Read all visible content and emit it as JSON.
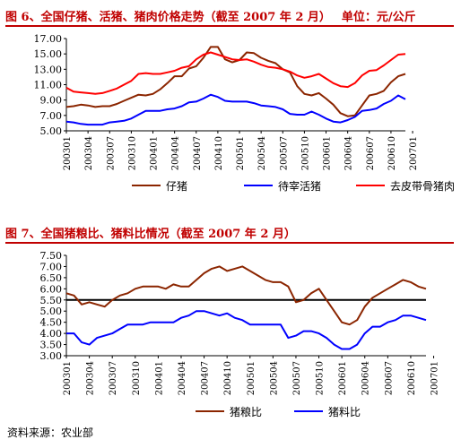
{
  "source_note": "资料来源：农业部",
  "chart_data": [
    {
      "type": "line",
      "title": "图 6、全国仔猪、活猪、猪肉价格走势（截至 2007 年 2 月）",
      "unit_label": "单位：元/公斤",
      "ylim": [
        5.0,
        17.0
      ],
      "yticks": [
        "17.00",
        "15.00",
        "13.00",
        "11.00",
        "9.00",
        "7.00",
        "5.00"
      ],
      "ytick_values": [
        17,
        15,
        13,
        11,
        9,
        7,
        5
      ],
      "x_tick_labels": [
        "200301",
        "200304",
        "200307",
        "200310",
        "200401",
        "200404",
        "200407",
        "200410",
        "200501",
        "200504",
        "200507",
        "200510",
        "200601",
        "200604",
        "200607",
        "200610",
        "200701"
      ],
      "x_start": "200301",
      "grid": false,
      "legend_position": "bottom",
      "series": [
        {
          "name": "仔猪",
          "color": "#8b2500",
          "values": [
            8.1,
            8.2,
            8.4,
            8.3,
            8.1,
            8.2,
            8.2,
            8.5,
            8.9,
            9.3,
            9.7,
            9.6,
            9.8,
            10.4,
            11.2,
            12.1,
            12.1,
            13.1,
            13.4,
            14.5,
            15.9,
            15.9,
            14.3,
            13.9,
            14.2,
            15.2,
            15.1,
            14.5,
            14.1,
            13.8,
            13.0,
            12.6,
            10.8,
            9.8,
            9.6,
            9.9,
            9.2,
            8.4,
            7.3,
            6.9,
            7.0,
            8.3,
            9.6,
            9.8,
            10.2,
            11.3,
            12.1,
            12.4
          ]
        },
        {
          "name": "待宰活猪",
          "color": "#0000ff",
          "values": [
            6.2,
            6.1,
            5.9,
            5.8,
            5.8,
            5.8,
            6.1,
            6.2,
            6.3,
            6.6,
            7.1,
            7.6,
            7.6,
            7.6,
            7.8,
            7.9,
            8.2,
            8.7,
            8.8,
            9.2,
            9.7,
            9.4,
            8.9,
            8.8,
            8.8,
            8.8,
            8.6,
            8.3,
            8.2,
            8.1,
            7.8,
            7.2,
            7.1,
            7.1,
            7.5,
            7.1,
            6.6,
            6.2,
            6.1,
            6.4,
            6.8,
            7.6,
            7.7,
            7.9,
            8.5,
            8.9,
            9.6,
            9.1
          ]
        },
        {
          "name": "去皮带骨猪肉",
          "color": "#ff0000",
          "values": [
            10.6,
            10.1,
            10.0,
            9.9,
            9.8,
            9.9,
            10.2,
            10.5,
            11.0,
            11.5,
            12.4,
            12.5,
            12.4,
            12.4,
            12.6,
            12.8,
            13.2,
            13.4,
            14.3,
            14.9,
            15.2,
            14.9,
            14.6,
            14.3,
            14.2,
            14.3,
            14.0,
            13.6,
            13.3,
            13.2,
            13.0,
            12.7,
            12.2,
            11.9,
            12.1,
            12.4,
            11.8,
            11.2,
            10.8,
            10.7,
            11.2,
            12.2,
            12.8,
            12.9,
            13.5,
            14.2,
            14.9,
            15.0
          ]
        }
      ]
    },
    {
      "type": "line",
      "title": "图 7、全国猪粮比、猪料比情况（截至 2007 年 2 月）",
      "ylim": [
        3.0,
        7.5
      ],
      "yticks": [
        "7.50",
        "7.00",
        "6.50",
        "6.00",
        "5.50",
        "5.00",
        "4.50",
        "4.00",
        "3.50",
        "3.00"
      ],
      "ytick_values": [
        7.5,
        7.0,
        6.5,
        6.0,
        5.5,
        5.0,
        4.5,
        4.0,
        3.5,
        3.0
      ],
      "x_tick_labels": [
        "200301",
        "200304",
        "200307",
        "200310",
        "200401",
        "200404",
        "200407",
        "200410",
        "200501",
        "200504",
        "200507",
        "200510",
        "200601",
        "200604",
        "200607",
        "200610",
        "200701"
      ],
      "x_start": "200301",
      "grid": false,
      "legend_position": "bottom",
      "reference_line": 5.5,
      "series": [
        {
          "name": "猪粮比",
          "color": "#8b2500",
          "values": [
            5.8,
            5.7,
            5.3,
            5.4,
            5.3,
            5.2,
            5.5,
            5.7,
            5.8,
            6.0,
            6.1,
            6.1,
            6.1,
            6.0,
            6.2,
            6.1,
            6.1,
            6.4,
            6.7,
            6.9,
            7.0,
            6.8,
            6.9,
            7.0,
            6.8,
            6.6,
            6.4,
            6.3,
            6.3,
            6.1,
            5.4,
            5.5,
            5.8,
            6.0,
            5.5,
            5.0,
            4.5,
            4.4,
            4.6,
            5.2,
            5.6,
            5.8,
            6.0,
            6.2,
            6.4,
            6.3,
            6.1,
            6.0
          ]
        },
        {
          "name": "猪料比",
          "color": "#0000ff",
          "values": [
            4.0,
            4.0,
            3.6,
            3.5,
            3.8,
            3.9,
            4.0,
            4.2,
            4.4,
            4.4,
            4.4,
            4.5,
            4.5,
            4.5,
            4.5,
            4.7,
            4.8,
            5.0,
            5.0,
            4.9,
            4.8,
            4.9,
            4.7,
            4.6,
            4.4,
            4.4,
            4.4,
            4.4,
            4.4,
            3.8,
            3.9,
            4.1,
            4.1,
            4.0,
            3.8,
            3.5,
            3.3,
            3.3,
            3.5,
            4.0,
            4.3,
            4.3,
            4.5,
            4.6,
            4.8,
            4.8,
            4.7,
            4.6
          ]
        }
      ]
    }
  ]
}
